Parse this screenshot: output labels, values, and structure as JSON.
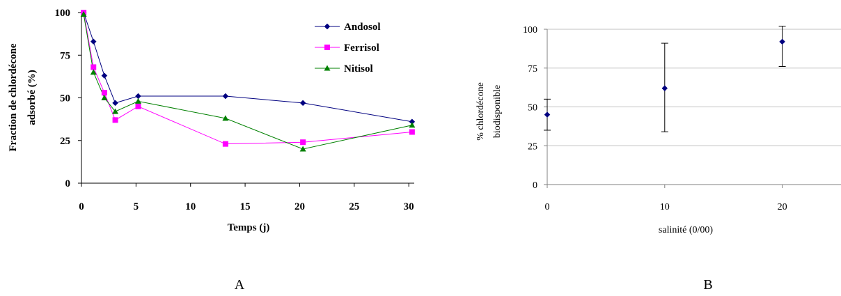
{
  "panel_labels": {
    "a": "A",
    "b": "B"
  },
  "chart_data": [
    {
      "type": "line",
      "panel": "A",
      "xlabel": "Temps (j)",
      "ylabel": "Fraction de chlordécone adsorbé (%)",
      "ylabel_lines": [
        "Fraction de chlordécone",
        "adsorbé (%)"
      ],
      "xlim": [
        0,
        30.5
      ],
      "ylim": [
        0,
        100
      ],
      "xticks": [
        0,
        5,
        10,
        15,
        20,
        25,
        30
      ],
      "yticks": [
        0,
        25,
        50,
        75,
        100
      ],
      "grid": false,
      "legend_position": "top-right",
      "series": [
        {
          "name": "Andosol",
          "color": "#000080",
          "marker": "diamond",
          "x": [
            0.2,
            1.1,
            2.1,
            3.1,
            5.2,
            13.2,
            20.3,
            30.3
          ],
          "y": [
            100,
            83,
            63,
            47,
            51,
            51,
            47,
            36
          ]
        },
        {
          "name": "Ferrisol",
          "color": "#ff00ff",
          "marker": "square",
          "x": [
            0.2,
            1.1,
            2.1,
            3.1,
            5.2,
            13.2,
            20.3,
            30.3
          ],
          "y": [
            100,
            68,
            53,
            37,
            45,
            23,
            24,
            30
          ]
        },
        {
          "name": "Nitisol",
          "color": "#008000",
          "marker": "triangle",
          "x": [
            0.2,
            1.1,
            2.1,
            3.1,
            5.2,
            13.2,
            20.3,
            30.3
          ],
          "y": [
            99,
            65,
            50,
            42,
            48,
            38,
            20,
            34
          ]
        }
      ]
    },
    {
      "type": "scatter",
      "panel": "B",
      "xlabel": "salinité (0/00)",
      "ylabel": "% chlordécone biodisponible",
      "ylabel_lines": [
        "% chlordécone",
        "biodisponible"
      ],
      "xlim": [
        0,
        25
      ],
      "ylim": [
        0,
        100
      ],
      "xticks": [
        0,
        10,
        20
      ],
      "yticks": [
        0,
        25,
        50,
        75,
        100
      ],
      "grid": true,
      "color": "#000080",
      "marker": "diamond",
      "points": [
        {
          "x": 0,
          "y": 45,
          "err_low": 35,
          "err_high": 55
        },
        {
          "x": 10,
          "y": 62,
          "err_low": 34,
          "err_high": 91
        },
        {
          "x": 20,
          "y": 92,
          "err_low": 76,
          "err_high": 102
        }
      ]
    }
  ]
}
